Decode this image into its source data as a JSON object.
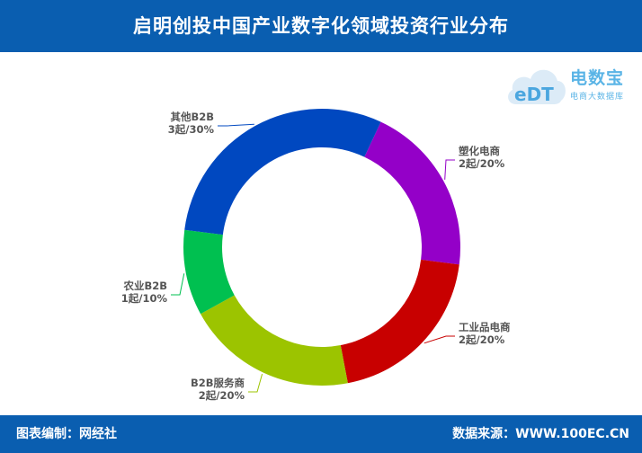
{
  "header": {
    "title": "启明创投中国产业数字化领域投资行业分布"
  },
  "footer": {
    "left": "图表编制：网经社",
    "right": "数据来源：WWW.100EC.CN"
  },
  "logo": {
    "mark": "eDT",
    "name": "电数宝",
    "sub": "电商大数据库"
  },
  "chart_data": {
    "type": "pie",
    "categories": [
      "塑化电商",
      "工业品电商",
      "B2B服务商",
      "农业B2B",
      "其他B2B"
    ],
    "values": [
      20,
      20,
      20,
      10,
      30
    ],
    "counts": [
      2,
      2,
      2,
      1,
      3
    ],
    "labels": [
      "2起/20%",
      "2起/20%",
      "2起/20%",
      "1起/10%",
      "3起/30%"
    ],
    "colors": [
      "#9400c8",
      "#c80000",
      "#9cc400",
      "#00c050",
      "#0048c0"
    ],
    "hole": "donut"
  }
}
